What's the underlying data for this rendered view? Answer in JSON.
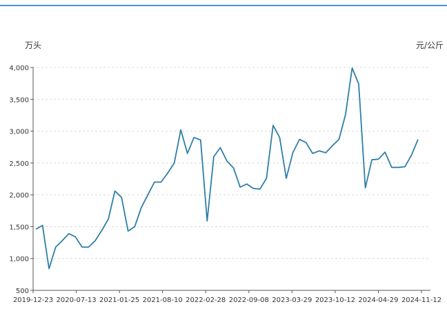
{
  "chart_data": {
    "type": "line",
    "left_unit": "万头",
    "right_unit": "元/公斤",
    "ylim": [
      500,
      4000
    ],
    "y_ticks": [
      500,
      1000,
      1500,
      2000,
      2500,
      3000,
      3500,
      4000
    ],
    "y_tick_labels": [
      "500",
      "1,000",
      "1,500",
      "2,000",
      "2,500",
      "3,000",
      "3,500",
      "4,000"
    ],
    "x_tick_labels": [
      "2019-12-23",
      "2020-07-13",
      "2021-01-25",
      "2021-08-10",
      "2022-02-28",
      "2022-09-08",
      "2023-03-29",
      "2023-10-12",
      "2024-04-29",
      "2024-11-12"
    ],
    "grid": true,
    "line_color": "#2e7ea6",
    "series": [
      {
        "values": [
          1460,
          1520,
          840,
          1180,
          1280,
          1390,
          1340,
          1180,
          1180,
          1280,
          1440,
          1620,
          2060,
          1960,
          1430,
          1500,
          1800,
          2000,
          2200,
          2200,
          2340,
          2500,
          3020,
          2650,
          2900,
          2860,
          1590,
          2600,
          2740,
          2530,
          2420,
          2120,
          2170,
          2100,
          2090,
          2260,
          3090,
          2900,
          2260,
          2660,
          2870,
          2820,
          2650,
          2690,
          2660,
          2770,
          2870,
          3260,
          3990,
          3740,
          2110,
          2550,
          2560,
          2670,
          2430,
          2430,
          2440,
          2620,
          2870
        ]
      }
    ]
  }
}
